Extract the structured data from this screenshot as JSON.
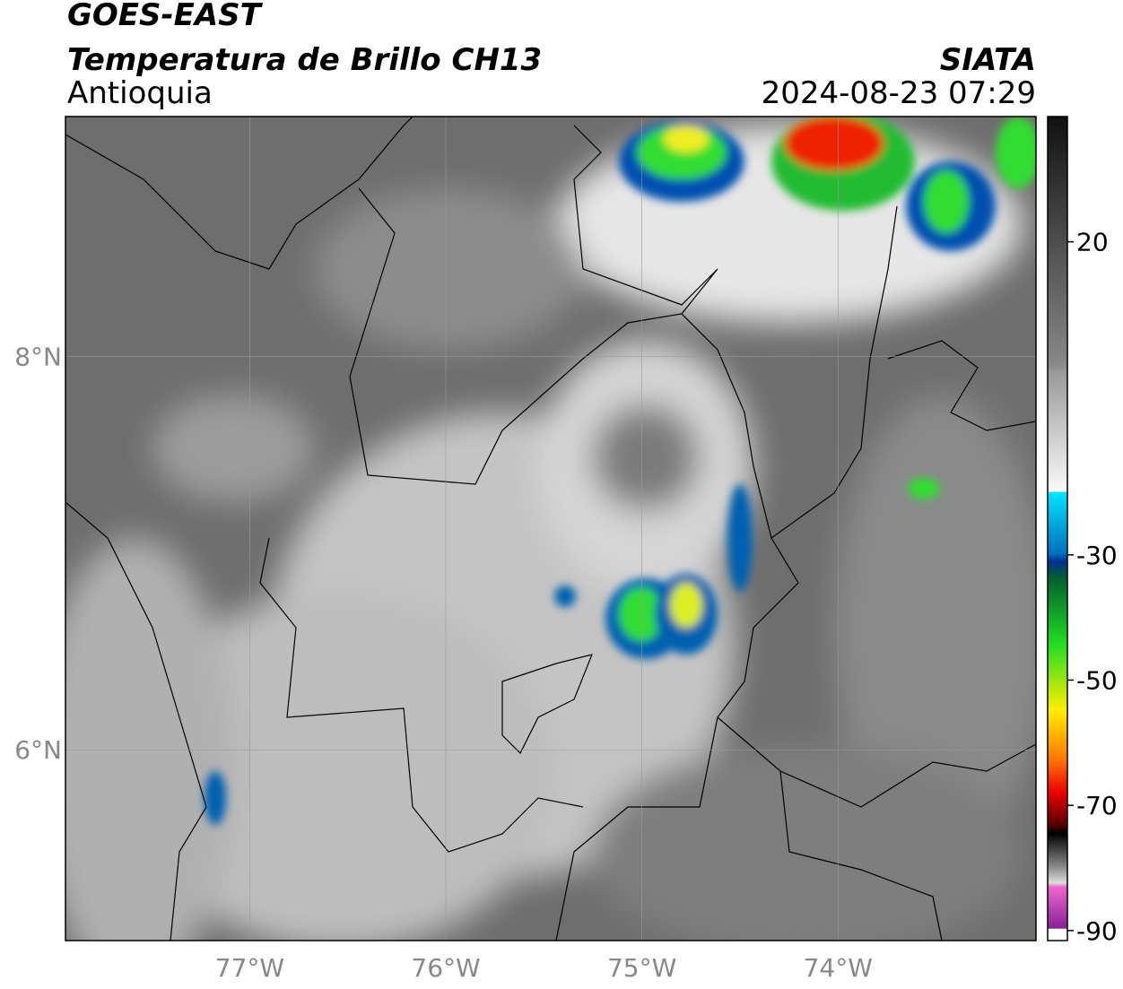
{
  "title": "GOES-EAST",
  "subtitle": "Temperatura de Brillo CH13",
  "region": "Antioquia",
  "source": "SIATA",
  "datetime": "2024-08-23 07:29",
  "map": {
    "lon_range": [
      -77.94,
      -72.99
    ],
    "lat_range": [
      5.03,
      9.22
    ],
    "lon_ticks": [
      {
        "value": -77,
        "label": "77°W"
      },
      {
        "value": -76,
        "label": "76°W"
      },
      {
        "value": -75,
        "label": "75°W"
      },
      {
        "value": -74,
        "label": "74°W"
      }
    ],
    "lat_ticks": [
      {
        "value": 8,
        "label": "8°N"
      },
      {
        "value": 6,
        "label": "6°N"
      }
    ]
  },
  "colorbar": {
    "range": [
      -91.6,
      40
    ],
    "ticks": [
      20,
      -30,
      -50,
      -70,
      -90
    ]
  }
}
